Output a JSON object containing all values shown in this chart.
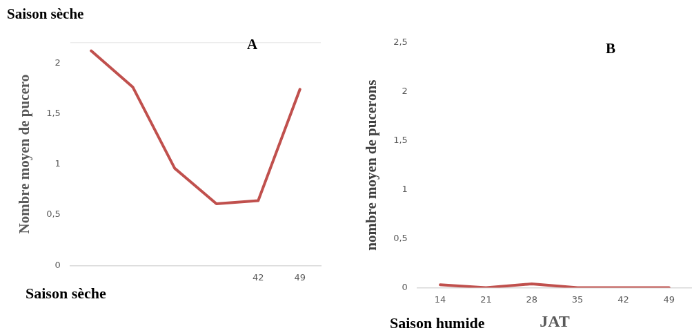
{
  "chart_data": [
    {
      "type": "line",
      "title": "Saison sèche",
      "annotations": [
        "A",
        "Saison sèche"
      ],
      "ylabel": "Nombre moyen de pucero",
      "categories": [
        null,
        null,
        null,
        null,
        "42",
        "49"
      ],
      "series": [
        {
          "color": "#c0504d",
          "values": [
            2.12,
            1.76,
            0.96,
            0.61,
            0.64,
            1.74
          ]
        }
      ],
      "ylim": [
        0,
        2.2
      ],
      "yticks": [
        0,
        {
          "value": 0.5,
          "label": "0,5"
        },
        1,
        {
          "value": 1.5,
          "label": "1,5"
        },
        2
      ],
      "grid": false,
      "legend": false,
      "marker": "none",
      "line_style": "solid"
    },
    {
      "type": "line",
      "annotations": [
        "B",
        "Saison humide"
      ],
      "xlabel": "JAT",
      "ylabel": "nombre moyen de pucerons",
      "categories": [
        "14",
        "21",
        "28",
        "35",
        "42",
        "49"
      ],
      "series": [
        {
          "color": "#c0504d",
          "values": [
            0.03,
            0,
            0.04,
            0,
            0,
            0
          ]
        }
      ],
      "ylim": [
        0,
        2.5
      ],
      "yticks": [
        0,
        {
          "value": 0.5,
          "label": "0,5"
        },
        1,
        {
          "value": 1.5,
          "label": "1,5"
        },
        2,
        {
          "value": 2.5,
          "label": "2,5"
        }
      ],
      "grid": false,
      "legend": false,
      "marker": "none",
      "line_style": "solid"
    }
  ]
}
